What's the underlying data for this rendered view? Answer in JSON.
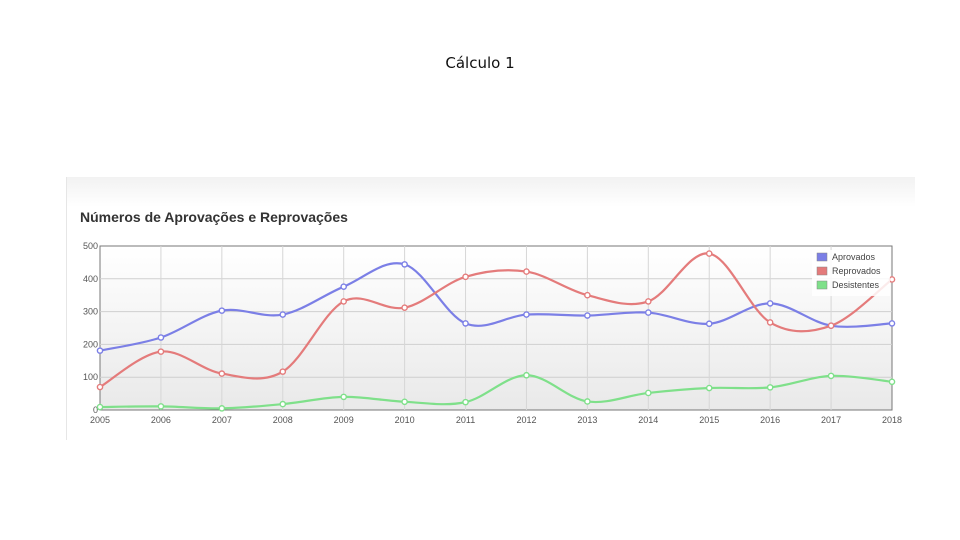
{
  "slide": {
    "title": "Cálculo 1"
  },
  "chart_data": {
    "type": "line",
    "title": "Números de Aprovações e Reprovações",
    "xlabel": "",
    "ylabel": "",
    "x": [
      "2005",
      "2006",
      "2007",
      "2008",
      "2009",
      "2010",
      "2011",
      "2012",
      "2013",
      "2014",
      "2015",
      "2016",
      "2017",
      "2018"
    ],
    "ylim": [
      0,
      500
    ],
    "yticks": [
      "0",
      "100",
      "200",
      "300",
      "400",
      "500"
    ],
    "grid": true,
    "legend_position": "top-right",
    "series": [
      {
        "name": "Aprovados",
        "color": "#7b7fe6",
        "values": [
          181,
          221,
          303,
          291,
          376,
          444,
          264,
          291,
          288,
          297,
          263,
          325,
          257,
          264
        ]
      },
      {
        "name": "Reprovados",
        "color": "#e47b7b",
        "values": [
          70,
          178,
          111,
          117,
          331,
          312,
          406,
          422,
          350,
          331,
          477,
          267,
          257,
          398
        ]
      },
      {
        "name": "Desistentes",
        "color": "#7fe08a",
        "values": [
          9,
          11,
          5,
          18,
          40,
          25,
          24,
          106,
          26,
          52,
          67,
          69,
          104,
          86
        ]
      }
    ]
  }
}
